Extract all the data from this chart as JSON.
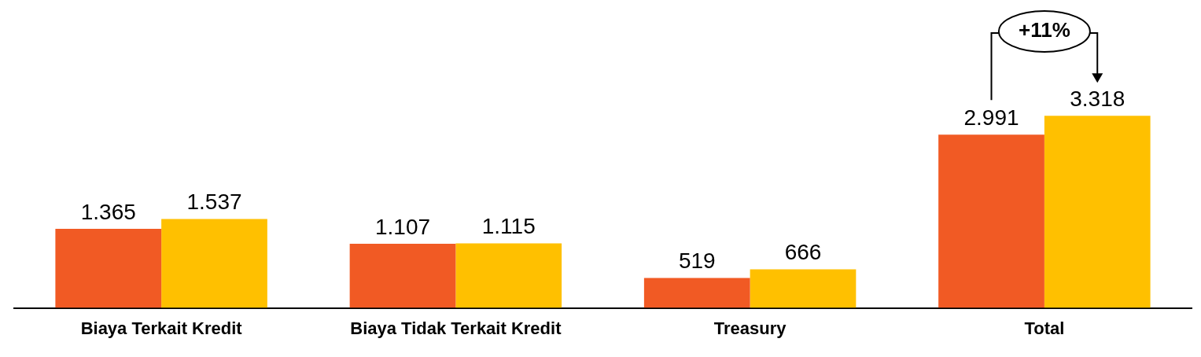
{
  "chart_data": {
    "type": "bar",
    "categories": [
      "Biaya Terkait Kredit",
      "Biaya Tidak Terkait Kredit",
      "Treasury",
      "Total"
    ],
    "series": [
      {
        "color": "#f15a24",
        "values": [
          1365,
          1107,
          519,
          2991
        ],
        "value_labels": [
          "1.365",
          "1.107",
          "519",
          "2.991"
        ]
      },
      {
        "color": "#ffc000",
        "values": [
          1537,
          1115,
          666,
          3318
        ],
        "value_labels": [
          "1.537",
          "1.115",
          "666",
          "3.318"
        ]
      }
    ],
    "annotations": [
      "+11%"
    ],
    "grid": false,
    "legend": false
  }
}
